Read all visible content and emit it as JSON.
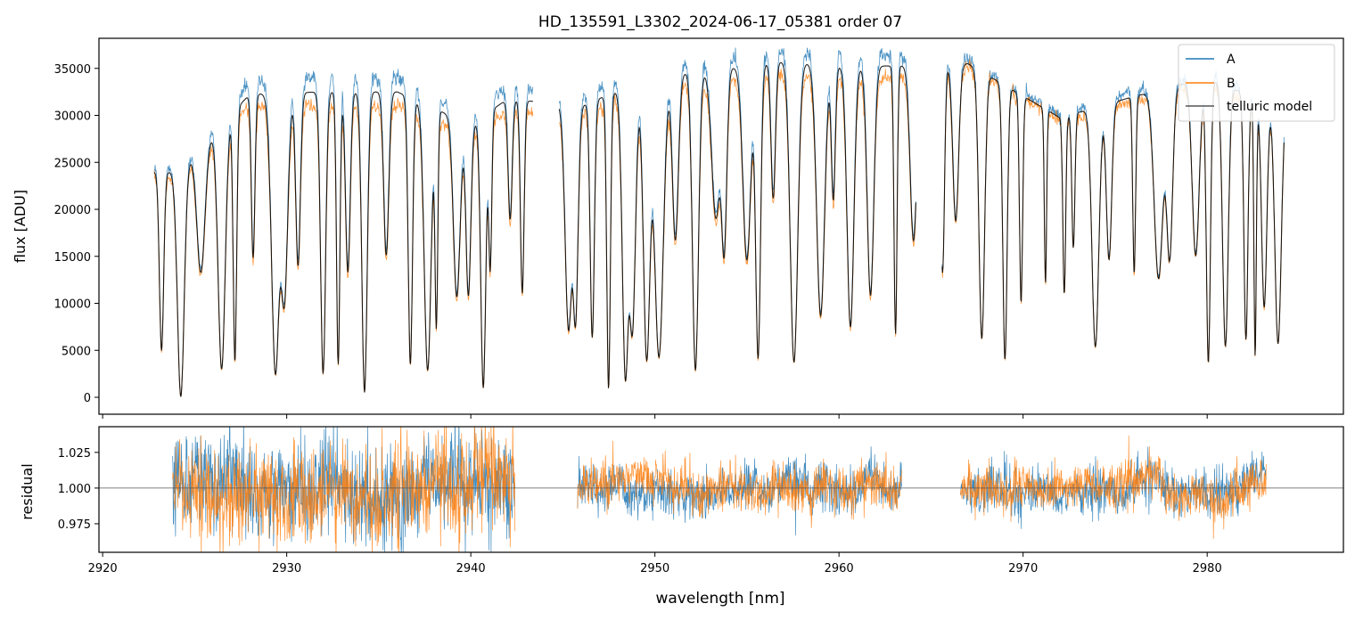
{
  "chart_data": [
    {
      "type": "line",
      "title": "HD_135591_L3302_2024-06-17_05381  order 07",
      "xlabel": "",
      "ylabel": "flux [ADU]",
      "xlim": [
        2919.8,
        2987.4
      ],
      "ylim": [
        -1800,
        38200
      ],
      "yticks": [
        0,
        5000,
        10000,
        15000,
        20000,
        25000,
        30000,
        35000
      ],
      "yticklabels": [
        "0",
        "5000",
        "10000",
        "15000",
        "20000",
        "25000",
        "30000",
        "35000"
      ],
      "xticks": [
        2920,
        2930,
        2940,
        2950,
        2960,
        2970,
        2980
      ],
      "legend": {
        "position": "top-right",
        "entries": [
          {
            "label": "A",
            "color": "#1f77b4"
          },
          {
            "label": "B",
            "color": "#ff7f0e"
          },
          {
            "label": "telluric model",
            "color": "#000000"
          }
        ]
      },
      "series": [
        {
          "name": "A",
          "color": "#1f77b4",
          "segments": [
            [
              2922.8,
              2943.4
            ],
            [
              2944.8,
              2964.2
            ],
            [
              2965.6,
              2984.2
            ]
          ],
          "continuum_x": [
            2924,
            2928,
            2932,
            2936,
            2940,
            2942,
            2946,
            2950,
            2953,
            2957,
            2960,
            2963,
            2967,
            2972,
            2976,
            2980,
            2983
          ],
          "continuum_y": [
            24500,
            33500,
            34000,
            34000,
            30000,
            33000,
            32000,
            35500,
            36000,
            37000,
            36500,
            36500,
            36000,
            30000,
            32500,
            34500,
            32000
          ]
        },
        {
          "name": "B",
          "color": "#ff7f0e",
          "segments": [
            [
              2922.8,
              2943.4
            ],
            [
              2944.8,
              2964.2
            ],
            [
              2965.6,
              2984.2
            ]
          ],
          "continuum_x": [
            2924,
            2928,
            2932,
            2936,
            2940,
            2942,
            2946,
            2950,
            2953,
            2957,
            2960,
            2963,
            2967,
            2972,
            2976,
            2980,
            2983
          ],
          "continuum_y": [
            23500,
            31000,
            31000,
            31000,
            28000,
            30500,
            30000,
            33000,
            33500,
            34500,
            34000,
            34000,
            35000,
            29500,
            31500,
            33500,
            31000
          ]
        },
        {
          "name": "telluric model",
          "color": "#000000",
          "segments": [
            [
              2922.8,
              2943.4
            ],
            [
              2944.8,
              2964.2
            ],
            [
              2965.6,
              2984.2
            ]
          ]
        }
      ]
    },
    {
      "type": "line",
      "title": "",
      "xlabel": "wavelength [nm]",
      "ylabel": "residual",
      "xlim": [
        2919.8,
        2987.4
      ],
      "ylim": [
        0.955,
        1.043
      ],
      "yticks": [
        0.975,
        1.0,
        1.025
      ],
      "yticklabels": [
        "0.975",
        "1.000",
        "1.025"
      ],
      "xticks": [
        2920,
        2930,
        2940,
        2950,
        2960,
        2970,
        2980
      ],
      "xticklabels": [
        "2920",
        "2930",
        "2940",
        "2950",
        "2960",
        "2970",
        "2980"
      ],
      "reference_line": 1.0,
      "series": [
        {
          "name": "A",
          "color": "#1f77b4",
          "segments": [
            [
              2923.8,
              2942.4
            ],
            [
              2945.8,
              2963.4
            ],
            [
              2966.6,
              2983.2
            ]
          ]
        },
        {
          "name": "B",
          "color": "#ff7f0e",
          "segments": [
            [
              2923.8,
              2942.4
            ],
            [
              2945.8,
              2963.4
            ],
            [
              2966.6,
              2983.2
            ]
          ]
        }
      ]
    }
  ]
}
